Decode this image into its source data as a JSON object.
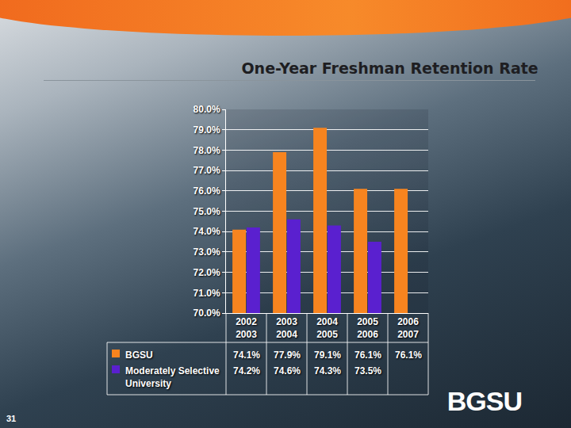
{
  "chart_data": {
    "type": "bar",
    "title": "One-Year Freshman Retention Rate",
    "categories": [
      "2002 2003",
      "2003 2004",
      "2004 2005",
      "2005 2006",
      "2006 2007"
    ],
    "series": [
      {
        "name": "BGSU",
        "color": "#f7841f",
        "values": [
          74.1,
          77.9,
          79.1,
          76.1,
          76.1
        ],
        "value_labels": [
          "74.1%",
          "77.9%",
          "79.1%",
          "76.1%",
          "76.1%"
        ]
      },
      {
        "name": "Moderately Selective University",
        "color": "#5a20cf",
        "values": [
          74.2,
          74.6,
          74.3,
          73.5,
          null
        ],
        "value_labels": [
          "74.2%",
          "74.6%",
          "74.3%",
          "73.5%",
          null
        ]
      }
    ],
    "ylim": [
      70,
      80
    ],
    "yticks": [
      {
        "value": 70,
        "label": "70.0%"
      },
      {
        "value": 71,
        "label": "71.0%"
      },
      {
        "value": 72,
        "label": "72.0%"
      },
      {
        "value": 73,
        "label": "73.0%"
      },
      {
        "value": 74,
        "label": "74.0%"
      },
      {
        "value": 75,
        "label": "75.0%"
      },
      {
        "value": 76,
        "label": "76.0%"
      },
      {
        "value": 77,
        "label": "77.0%"
      },
      {
        "value": 78,
        "label": "78.0%"
      },
      {
        "value": 79,
        "label": "79.0%"
      },
      {
        "value": 80,
        "label": "80.0%"
      }
    ],
    "grid": true,
    "legend": "bottom left"
  },
  "slide": {
    "page_number": "31",
    "logo": "BGSU"
  }
}
